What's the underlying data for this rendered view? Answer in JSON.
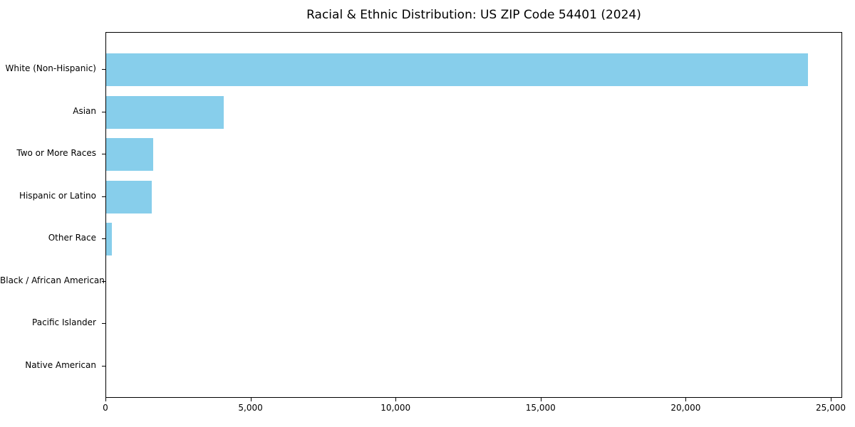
{
  "chart_data": {
    "type": "bar",
    "orientation": "horizontal",
    "title": "Racial & Ethnic Distribution: US ZIP Code 54401 (2024)",
    "categories": [
      "White (Non-Hispanic)",
      "Asian",
      "Two or More Races",
      "Hispanic or Latino",
      "Other Race",
      "Black / African American",
      "Pacific Islander",
      "Native American"
    ],
    "values": [
      24200,
      4040,
      1630,
      1560,
      200,
      0,
      0,
      0
    ],
    "xlabel": "",
    "ylabel": "",
    "xlim": [
      0,
      25000
    ],
    "xticks": [
      0,
      5000,
      10000,
      15000,
      20000,
      25000
    ],
    "xtick_labels": [
      "0",
      "5,000",
      "10,000",
      "15,000",
      "20,000",
      "25,000"
    ],
    "bar_color": "#87CEEB",
    "axis_color": "#000000",
    "grid": false,
    "legend_position": "none"
  }
}
